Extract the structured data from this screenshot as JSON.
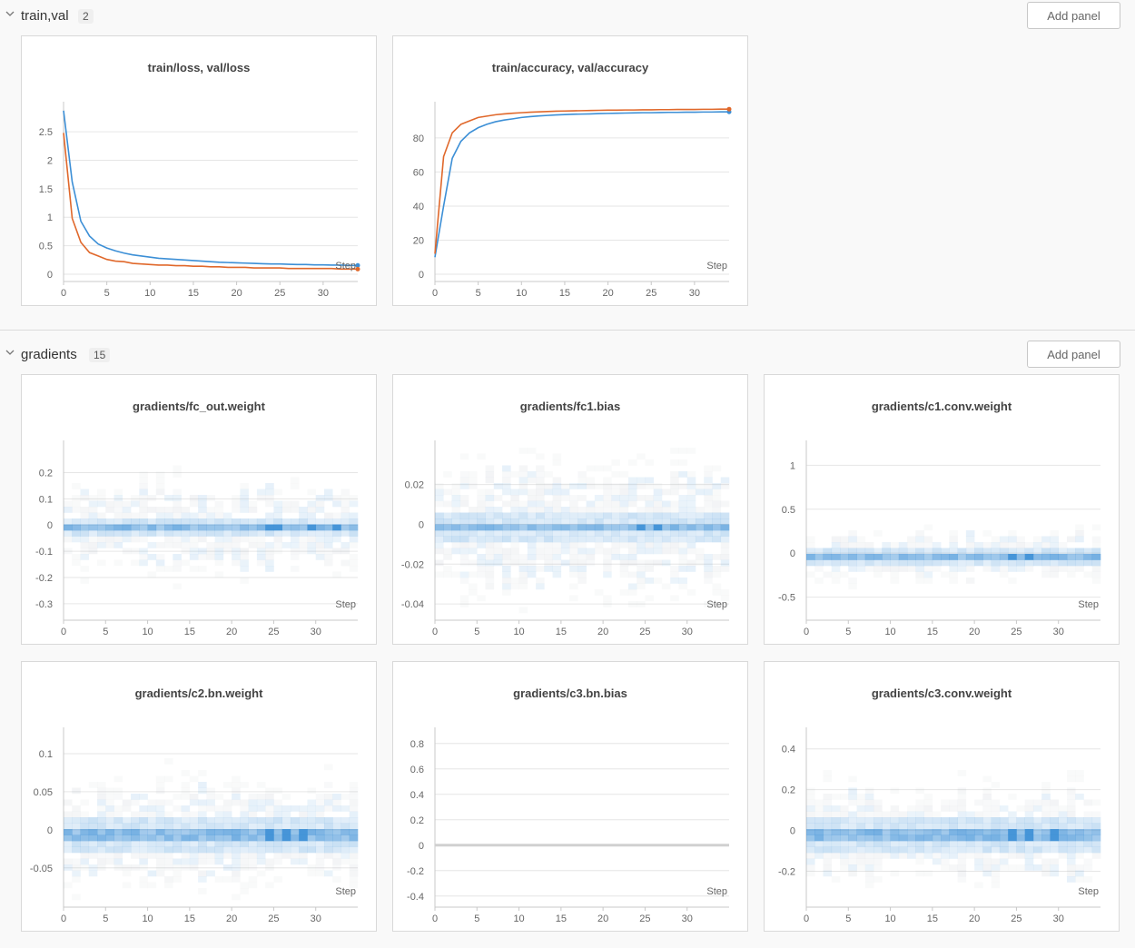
{
  "sections": [
    {
      "title": "train,val",
      "count": "2",
      "add_panel": "Add panel"
    },
    {
      "title": "gradients",
      "count": "15",
      "add_panel": "Add panel"
    }
  ],
  "colors": {
    "blue": "#3c8fd6",
    "orange": "#e0682b",
    "heat": "#3c8fd6",
    "grid": "#e6e6e6",
    "axis": "#c8c8c8"
  },
  "chart_data": [
    {
      "title": "train/loss, val/loss",
      "type": "line",
      "xlabel": "Step",
      "xlim": [
        0,
        34
      ],
      "ylim": [
        0,
        2.9
      ],
      "xticks": [
        0,
        5,
        10,
        15,
        20,
        25,
        30
      ],
      "yticks": [
        0,
        0.5,
        1,
        1.5,
        2,
        2.5
      ],
      "ytick_labels": [
        "0",
        "0.5",
        "1",
        "1.5",
        "2",
        "2.5"
      ],
      "series": [
        {
          "color": "blue",
          "x": [
            0,
            1,
            2,
            3,
            4,
            5,
            6,
            7,
            8,
            9,
            10,
            11,
            12,
            13,
            14,
            15,
            16,
            17,
            18,
            19,
            20,
            21,
            22,
            23,
            24,
            25,
            26,
            27,
            28,
            29,
            30,
            31,
            32,
            33,
            34
          ],
          "values": [
            2.87,
            1.62,
            0.93,
            0.67,
            0.53,
            0.46,
            0.41,
            0.37,
            0.34,
            0.32,
            0.3,
            0.28,
            0.27,
            0.26,
            0.25,
            0.24,
            0.23,
            0.22,
            0.21,
            0.205,
            0.2,
            0.195,
            0.19,
            0.185,
            0.18,
            0.18,
            0.175,
            0.17,
            0.17,
            0.165,
            0.165,
            0.16,
            0.16,
            0.155,
            0.155
          ]
        },
        {
          "color": "orange",
          "x": [
            0,
            1,
            2,
            3,
            4,
            5,
            6,
            7,
            8,
            9,
            10,
            11,
            12,
            13,
            14,
            15,
            16,
            17,
            18,
            19,
            20,
            21,
            22,
            23,
            24,
            25,
            26,
            27,
            28,
            29,
            30,
            31,
            32,
            33,
            34
          ],
          "values": [
            2.48,
            0.98,
            0.56,
            0.38,
            0.32,
            0.26,
            0.23,
            0.22,
            0.19,
            0.18,
            0.17,
            0.16,
            0.16,
            0.15,
            0.15,
            0.14,
            0.14,
            0.13,
            0.13,
            0.12,
            0.12,
            0.12,
            0.11,
            0.11,
            0.11,
            0.11,
            0.1,
            0.1,
            0.1,
            0.1,
            0.1,
            0.1,
            0.09,
            0.09,
            0.09
          ]
        }
      ]
    },
    {
      "title": "train/accuracy, val/accuracy",
      "type": "line",
      "xlabel": "Step",
      "xlim": [
        0,
        34
      ],
      "ylim": [
        0,
        97
      ],
      "xticks": [
        0,
        5,
        10,
        15,
        20,
        25,
        30
      ],
      "yticks": [
        0,
        20,
        40,
        60,
        80
      ],
      "ytick_labels": [
        "0",
        "20",
        "40",
        "60",
        "80"
      ],
      "series": [
        {
          "color": "blue",
          "x": [
            0,
            1,
            2,
            3,
            4,
            5,
            6,
            7,
            8,
            9,
            10,
            11,
            12,
            13,
            14,
            15,
            16,
            17,
            18,
            19,
            20,
            21,
            22,
            23,
            24,
            25,
            26,
            27,
            28,
            29,
            30,
            31,
            32,
            33,
            34
          ],
          "values": [
            10,
            40,
            68,
            78,
            83,
            86,
            88,
            89.5,
            90.5,
            91.2,
            92,
            92.5,
            92.9,
            93.2,
            93.5,
            93.7,
            93.9,
            94,
            94.1,
            94.3,
            94.4,
            94.5,
            94.6,
            94.7,
            94.8,
            94.8,
            94.9,
            95,
            95,
            95.1,
            95.1,
            95.2,
            95.2,
            95.3,
            95.3
          ]
        },
        {
          "color": "orange",
          "x": [
            0,
            1,
            2,
            3,
            4,
            5,
            6,
            7,
            8,
            9,
            10,
            11,
            12,
            13,
            14,
            15,
            16,
            17,
            18,
            19,
            20,
            21,
            22,
            23,
            24,
            25,
            26,
            27,
            28,
            29,
            30,
            31,
            32,
            33,
            34
          ],
          "values": [
            12,
            69,
            83,
            88,
            90,
            92,
            92.8,
            93.6,
            94.1,
            94.5,
            94.8,
            95.1,
            95.3,
            95.5,
            95.7,
            95.8,
            95.9,
            96,
            96.1,
            96.2,
            96.3,
            96.3,
            96.4,
            96.4,
            96.5,
            96.5,
            96.6,
            96.6,
            96.7,
            96.7,
            96.7,
            96.8,
            96.8,
            96.9,
            96.9
          ]
        }
      ]
    },
    {
      "title": "gradients/fc_out.weight",
      "type": "heatmap",
      "xlabel": "Step",
      "xlim": [
        0,
        35
      ],
      "ylim": [
        -0.335,
        0.295
      ],
      "xticks": [
        0,
        5,
        10,
        15,
        20,
        25,
        30
      ],
      "yticks": [
        0.2,
        0.1,
        0,
        -0.1,
        -0.2,
        -0.3
      ],
      "ytick_labels": [
        "0.2",
        "0.1",
        "0",
        "-0.1",
        "-0.2",
        "-0.3"
      ],
      "bins": 35,
      "center": -0.01,
      "core": 0.014,
      "spread": 0.15,
      "hot": [
        24,
        25,
        29,
        32
      ]
    },
    {
      "title": "gradients/fc1.bias",
      "type": "heatmap",
      "xlabel": "Step",
      "xlim": [
        0,
        35
      ],
      "ylim": [
        -0.0445,
        0.0385
      ],
      "xticks": [
        0,
        5,
        10,
        15,
        20,
        25,
        30
      ],
      "yticks": [
        0.02,
        0,
        -0.02,
        -0.04
      ],
      "ytick_labels": [
        "0.02",
        "0",
        "-0.02",
        "-0.04"
      ],
      "bins": 35,
      "center": -0.0015,
      "core": 0.0022,
      "spread": 0.028,
      "hot": [
        24,
        26
      ]
    },
    {
      "title": "gradients/c1.conv.weight",
      "type": "heatmap",
      "xlabel": "Step",
      "xlim": [
        0,
        35
      ],
      "ylim": [
        -0.68,
        1.2
      ],
      "xticks": [
        0,
        5,
        10,
        15,
        20,
        25,
        30
      ],
      "yticks": [
        1,
        0.5,
        0,
        -0.5
      ],
      "ytick_labels": [
        "1",
        "0.5",
        "0",
        "-0.5"
      ],
      "bins": 35,
      "center": -0.03,
      "core": 0.04,
      "spread": 0.25,
      "hot": [
        24,
        26
      ]
    },
    {
      "title": "gradients/c2.bn.weight",
      "type": "heatmap",
      "xlabel": "Step",
      "xlim": [
        0,
        35
      ],
      "ylim": [
        -0.092,
        0.125
      ],
      "xticks": [
        0,
        5,
        10,
        15,
        20,
        25,
        30
      ],
      "yticks": [
        0.1,
        0.05,
        0,
        -0.05
      ],
      "ytick_labels": [
        "0.1",
        "0.05",
        "0",
        "-0.05"
      ],
      "bins": 35,
      "center": -0.004,
      "core": 0.008,
      "spread": 0.06,
      "hot": [
        24,
        26,
        28
      ]
    },
    {
      "title": "gradients/c3.bn.bias",
      "type": "flat",
      "xlabel": "Step",
      "xlim": [
        0,
        35
      ],
      "ylim": [
        -0.43,
        0.87
      ],
      "xticks": [
        0,
        5,
        10,
        15,
        20,
        25,
        30
      ],
      "yticks": [
        0.8,
        0.6,
        0.4,
        0.2,
        0,
        -0.2,
        -0.4
      ],
      "ytick_labels": [
        "0.8",
        "0.6",
        "0.4",
        "0.2",
        "0",
        "-0.2",
        "-0.4"
      ],
      "value": 0
    },
    {
      "title": "gradients/c3.conv.weight",
      "type": "heatmap",
      "xlabel": "Step",
      "xlim": [
        0,
        35
      ],
      "ylim": [
        -0.34,
        0.47
      ],
      "xticks": [
        0,
        5,
        10,
        15,
        20,
        25,
        30
      ],
      "yticks": [
        0.4,
        0.2,
        0,
        -0.2
      ],
      "ytick_labels": [
        "0.4",
        "0.2",
        "0",
        "-0.2"
      ],
      "bins": 35,
      "center": -0.02,
      "core": 0.03,
      "spread": 0.2,
      "hot": [
        24,
        26,
        29
      ]
    }
  ]
}
